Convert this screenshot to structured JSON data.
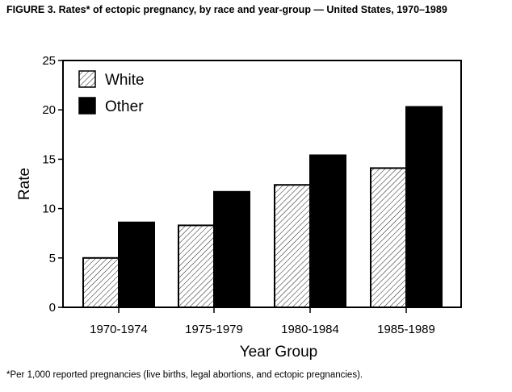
{
  "chart_data": {
    "type": "bar",
    "title": "FIGURE 3. Rates* of ectopic pregnancy, by race and year-group — United States, 1970–1989",
    "xlabel": "Year Group",
    "ylabel": "Rate",
    "ylim": [
      0,
      25
    ],
    "yticks": [
      "0",
      "5",
      "10",
      "15",
      "20",
      "25"
    ],
    "categories": [
      "1970-1974",
      "1975-1979",
      "1980-1984",
      "1985-1989"
    ],
    "series": [
      {
        "name": "White",
        "values": [
          5.0,
          8.3,
          12.4,
          14.1
        ],
        "pattern": "hatched"
      },
      {
        "name": "Other",
        "values": [
          8.6,
          11.7,
          15.4,
          20.3
        ],
        "color": "#000000"
      }
    ],
    "legend": "top-left",
    "grid": false,
    "footnote": "*Per 1,000 reported pregnancies (live births, legal abortions, and ectopic pregnancies)."
  }
}
